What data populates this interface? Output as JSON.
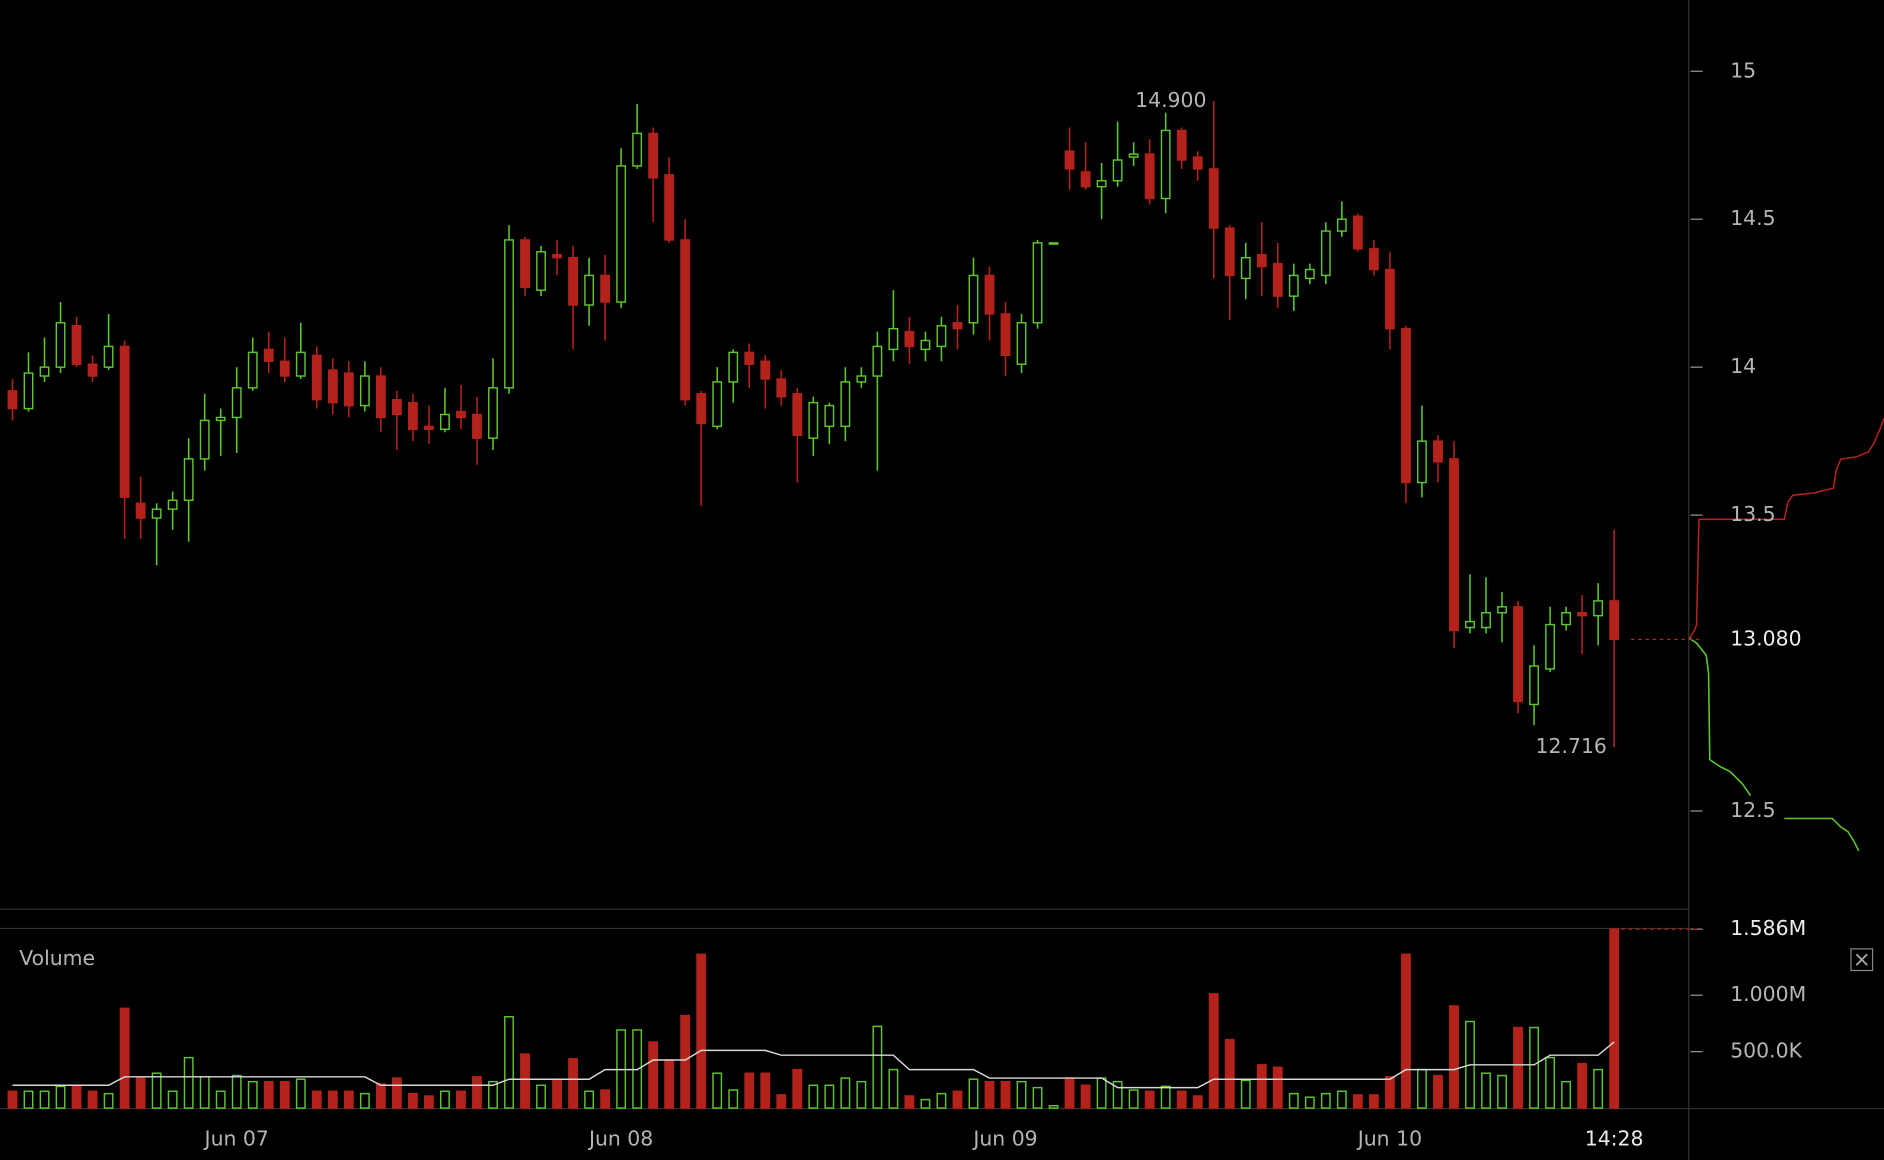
{
  "chart_data": {
    "type": "candlestick",
    "categories": [
      null,
      null,
      null,
      null,
      null,
      null,
      null,
      null,
      null,
      null,
      null,
      null,
      null,
      null,
      "Jun 07",
      null,
      null,
      null,
      null,
      null,
      null,
      null,
      null,
      null,
      null,
      null,
      null,
      null,
      null,
      null,
      null,
      null,
      null,
      null,
      null,
      null,
      null,
      null,
      "Jun 08",
      null,
      null,
      null,
      null,
      null,
      null,
      null,
      null,
      null,
      null,
      null,
      null,
      null,
      null,
      null,
      null,
      null,
      null,
      null,
      null,
      null,
      null,
      null,
      "Jun 09",
      null,
      null,
      null,
      null,
      null,
      null,
      null,
      null,
      null,
      null,
      null,
      null,
      null,
      null,
      null,
      null,
      null,
      null,
      null,
      null,
      null,
      null,
      null,
      "Jun 10",
      null,
      null,
      null,
      null,
      null,
      null,
      null,
      null,
      null,
      null,
      null,
      null,
      null,
      "14:28"
    ],
    "open": [
      13.92,
      13.86,
      13.97,
      14.0,
      14.14,
      14.01,
      14.0,
      14.07,
      13.54,
      13.49,
      13.52,
      13.55,
      13.69,
      13.82,
      13.83,
      13.93,
      14.06,
      14.02,
      13.97,
      14.04,
      13.99,
      13.98,
      13.87,
      13.97,
      13.89,
      13.88,
      13.8,
      13.79,
      13.85,
      13.84,
      13.76,
      13.93,
      14.43,
      14.26,
      14.38,
      14.37,
      14.21,
      14.31,
      14.22,
      14.68,
      14.79,
      14.65,
      14.43,
      13.91,
      13.8,
      13.95,
      14.05,
      14.02,
      13.96,
      13.91,
      13.76,
      13.8,
      13.8,
      13.95,
      13.97,
      14.06,
      14.12,
      14.06,
      14.07,
      14.15,
      14.15,
      14.31,
      14.18,
      14.01,
      14.15,
      14.42,
      14.73,
      14.66,
      14.61,
      14.63,
      14.71,
      14.72,
      14.57,
      14.8,
      14.71,
      14.67,
      14.47,
      14.3,
      14.38,
      14.35,
      14.24,
      14.3,
      14.31,
      14.46,
      14.51,
      14.4,
      14.33,
      14.13,
      13.61,
      13.75,
      13.69,
      13.12,
      13.12,
      13.17,
      13.19,
      12.86,
      12.98,
      13.13,
      13.17,
      13.16,
      13.21
    ],
    "high": [
      13.96,
      14.05,
      14.1,
      14.22,
      14.17,
      14.04,
      14.18,
      14.09,
      13.63,
      13.54,
      13.58,
      13.76,
      13.91,
      13.86,
      14.0,
      14.1,
      14.12,
      14.1,
      14.15,
      14.07,
      14.03,
      14.02,
      14.02,
      14.0,
      13.92,
      13.91,
      13.87,
      13.93,
      13.94,
      13.9,
      14.03,
      14.48,
      14.44,
      14.41,
      14.43,
      14.41,
      14.37,
      14.38,
      14.74,
      14.89,
      14.81,
      14.71,
      14.5,
      13.92,
      14.0,
      14.06,
      14.08,
      14.04,
      13.99,
      13.93,
      13.9,
      13.88,
      14.0,
      14.0,
      14.12,
      14.26,
      14.17,
      14.12,
      14.17,
      14.21,
      14.37,
      14.34,
      14.22,
      14.18,
      14.43,
      14.42,
      14.81,
      14.76,
      14.69,
      14.83,
      14.76,
      14.77,
      14.86,
      14.81,
      14.73,
      14.9,
      14.48,
      14.42,
      14.49,
      14.42,
      14.35,
      14.35,
      14.49,
      14.56,
      14.52,
      14.43,
      14.39,
      14.14,
      13.87,
      13.77,
      13.75,
      13.3,
      13.29,
      13.24,
      13.21,
      13.06,
      13.19,
      13.19,
      13.23,
      13.27,
      13.45
    ],
    "low": [
      13.82,
      13.85,
      13.95,
      13.98,
      14.0,
      13.95,
      13.99,
      13.42,
      13.42,
      13.33,
      13.45,
      13.41,
      13.65,
      13.7,
      13.71,
      13.92,
      13.98,
      13.95,
      13.96,
      13.86,
      13.84,
      13.83,
      13.85,
      13.78,
      13.72,
      13.75,
      13.74,
      13.78,
      13.79,
      13.67,
      13.72,
      13.91,
      14.24,
      14.24,
      14.31,
      14.06,
      14.14,
      14.09,
      14.2,
      14.67,
      14.49,
      14.42,
      13.87,
      13.53,
      13.79,
      13.88,
      13.93,
      13.86,
      13.87,
      13.61,
      13.7,
      13.74,
      13.75,
      13.93,
      13.65,
      14.02,
      14.01,
      14.02,
      14.02,
      14.06,
      14.11,
      14.09,
      13.97,
      13.98,
      14.13,
      14.42,
      14.6,
      14.6,
      14.5,
      14.61,
      14.68,
      14.55,
      14.52,
      14.67,
      14.63,
      14.3,
      14.16,
      14.23,
      14.24,
      14.2,
      14.19,
      14.28,
      14.28,
      14.44,
      14.39,
      14.31,
      14.06,
      13.54,
      13.56,
      13.61,
      13.05,
      13.1,
      13.1,
      13.07,
      12.83,
      12.79,
      12.97,
      13.11,
      13.03,
      13.06,
      12.716
    ],
    "close": [
      13.86,
      13.98,
      14.0,
      14.15,
      14.01,
      13.97,
      14.07,
      13.56,
      13.49,
      13.52,
      13.55,
      13.69,
      13.82,
      13.83,
      13.93,
      14.05,
      14.02,
      13.97,
      14.05,
      13.89,
      13.88,
      13.87,
      13.97,
      13.83,
      13.84,
      13.79,
      13.79,
      13.84,
      13.83,
      13.76,
      13.93,
      14.43,
      14.27,
      14.39,
      14.37,
      14.21,
      14.31,
      14.22,
      14.68,
      14.79,
      14.64,
      14.43,
      13.89,
      13.81,
      13.95,
      14.05,
      14.01,
      13.96,
      13.9,
      13.77,
      13.88,
      13.87,
      13.95,
      13.97,
      14.07,
      14.13,
      14.07,
      14.09,
      14.14,
      14.13,
      14.31,
      14.18,
      14.04,
      14.15,
      14.42,
      14.42,
      14.67,
      14.61,
      14.63,
      14.7,
      14.72,
      14.57,
      14.8,
      14.7,
      14.67,
      14.47,
      14.31,
      14.37,
      14.34,
      14.24,
      14.31,
      14.33,
      14.46,
      14.5,
      14.4,
      14.33,
      14.13,
      13.61,
      13.75,
      13.68,
      13.11,
      13.14,
      13.17,
      13.19,
      12.87,
      12.99,
      13.13,
      13.17,
      13.16,
      13.21,
      13.08
    ],
    "up_color": "#5cc82c",
    "down_color": "#b3221b",
    "ylim": [
      12.17,
      15.24
    ],
    "yticks": [
      15,
      14.5,
      14,
      13.5,
      12.5
    ],
    "last_price": {
      "value": 13.08,
      "label": "13.080"
    },
    "annotations": [
      {
        "value": 14.9,
        "label": "14.900",
        "index": 75
      },
      {
        "value": 12.716,
        "label": "12.716",
        "index": 100
      }
    ],
    "volume": {
      "title": "Volume",
      "values": [
        149000,
        149000,
        149000,
        192000,
        192000,
        149000,
        128000,
        884000,
        266000,
        309000,
        149000,
        447000,
        277000,
        149000,
        288000,
        234000,
        234000,
        234000,
        256000,
        149000,
        149000,
        149000,
        128000,
        213000,
        266000,
        128000,
        107000,
        149000,
        149000,
        277000,
        234000,
        809000,
        479000,
        202000,
        256000,
        437000,
        149000,
        160000,
        692000,
        692000,
        586000,
        426000,
        820000,
        1363000,
        309000,
        160000,
        309000,
        309000,
        117000,
        341000,
        202000,
        202000,
        266000,
        234000,
        724000,
        341000,
        107000,
        75000,
        128000,
        149000,
        256000,
        234000,
        234000,
        234000,
        181000,
        21000,
        266000,
        202000,
        266000,
        234000,
        160000,
        149000,
        192000,
        149000,
        107000,
        1012000,
        607000,
        245000,
        383000,
        362000,
        128000,
        96000,
        128000,
        149000,
        117000,
        117000,
        277000,
        1363000,
        341000,
        288000,
        905000,
        767000,
        309000,
        288000,
        714000,
        714000,
        447000,
        234000,
        394000,
        341000,
        1586000
      ],
      "ma": [
        202000,
        202000,
        202000,
        202000,
        202000,
        202000,
        202000,
        277000,
        277000,
        277000,
        277000,
        277000,
        277000,
        277000,
        277000,
        277000,
        277000,
        277000,
        277000,
        277000,
        277000,
        277000,
        277000,
        202000,
        202000,
        202000,
        202000,
        202000,
        202000,
        202000,
        202000,
        256000,
        256000,
        256000,
        256000,
        256000,
        256000,
        341000,
        341000,
        341000,
        426000,
        426000,
        426000,
        511000,
        511000,
        511000,
        511000,
        511000,
        469000,
        469000,
        469000,
        469000,
        469000,
        469000,
        469000,
        469000,
        341000,
        341000,
        341000,
        341000,
        341000,
        266000,
        266000,
        266000,
        266000,
        266000,
        266000,
        266000,
        266000,
        181000,
        181000,
        181000,
        181000,
        181000,
        181000,
        256000,
        256000,
        256000,
        256000,
        256000,
        256000,
        256000,
        256000,
        256000,
        256000,
        256000,
        256000,
        341000,
        341000,
        341000,
        341000,
        383000,
        383000,
        383000,
        383000,
        383000,
        469000,
        469000,
        469000,
        469000,
        586000
      ],
      "ma_color": "#d8d8d8",
      "ylim": [
        0,
        1725000
      ],
      "yticks": [
        {
          "value": 1586000,
          "label": "1.586M"
        },
        {
          "value": 1000000,
          "label": "1.000M"
        },
        {
          "value": 500000,
          "label": "500.0K"
        }
      ]
    }
  }
}
